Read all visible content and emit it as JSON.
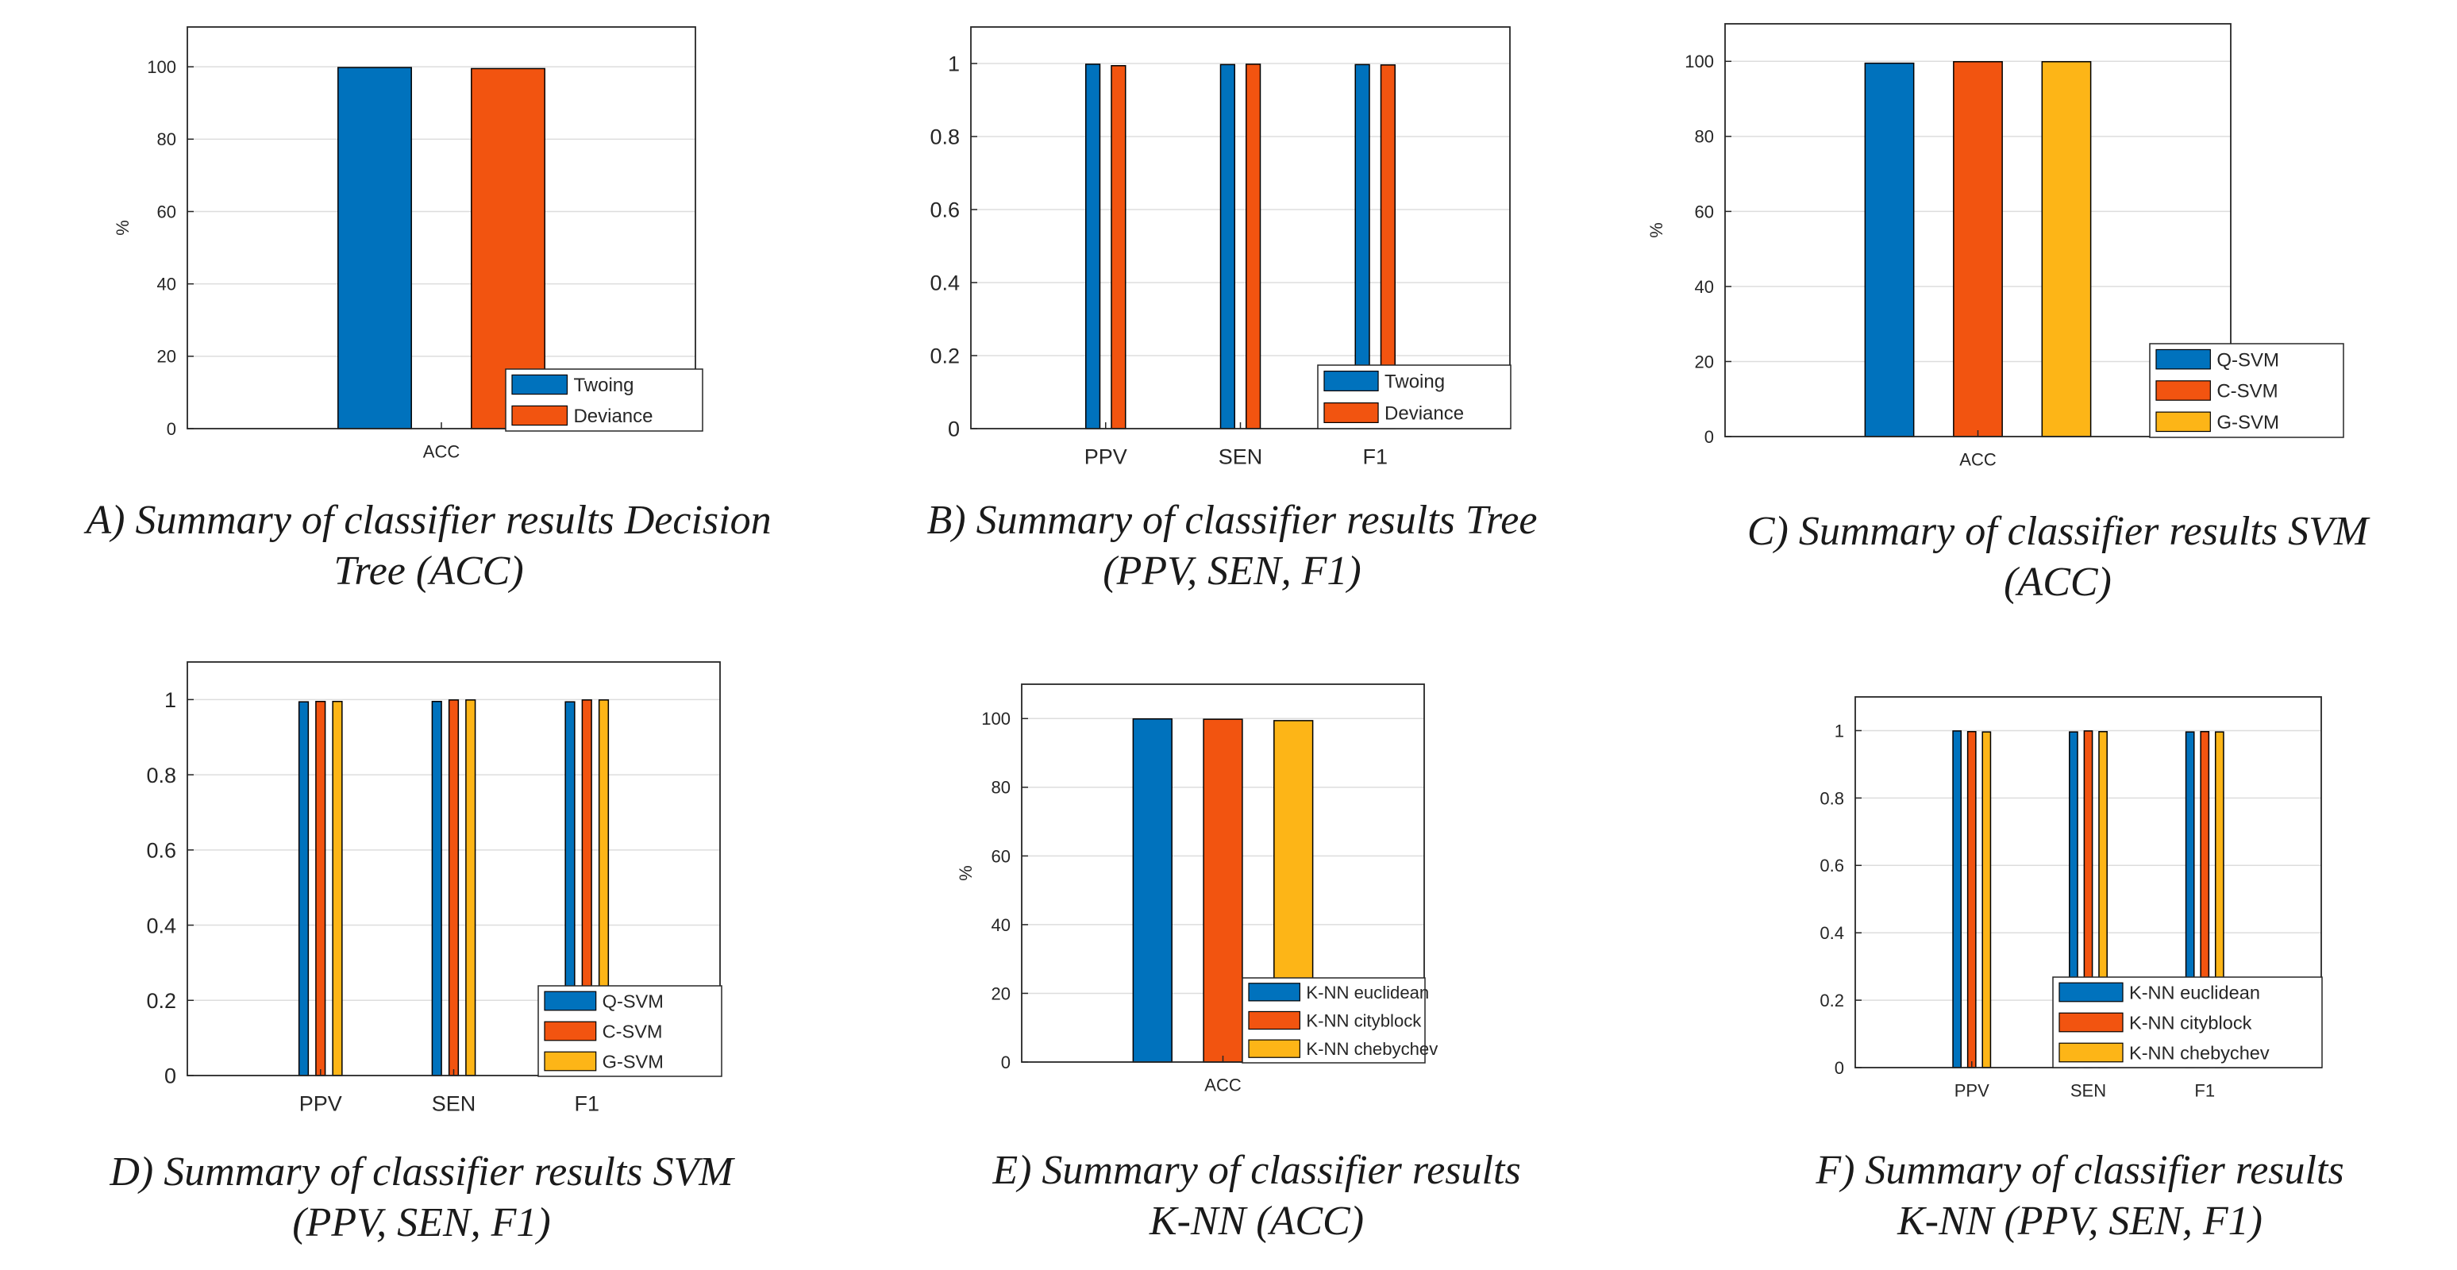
{
  "colors": {
    "blue": "#0072BD",
    "orange": "#F25410",
    "yellow": "#FDB517",
    "grid": "#DDDDDD",
    "axis": "#262626"
  },
  "panels": [
    {
      "caption_lines": [
        "A) Summary of classifier results Decision",
        "Tree (ACC)"
      ],
      "chart_data": {
        "type": "bar",
        "categories": [
          "ACC"
        ],
        "series": [
          {
            "name": "Twoing",
            "color": "blue",
            "values": [
              99.8
            ]
          },
          {
            "name": "Deviance",
            "color": "orange",
            "values": [
              99.5
            ]
          }
        ],
        "xlabel": "",
        "ylabel": "%",
        "ylim": [
          0,
          100
        ],
        "ymax_axis": 111,
        "yticks": [
          "0",
          "20",
          "40",
          "60",
          "80",
          "100"
        ],
        "grid": true,
        "legend": "bottom-right"
      }
    },
    {
      "caption_lines": [
        "B) Summary of classifier results Tree",
        "(PPV, SEN, F1)"
      ],
      "chart_data": {
        "type": "bar",
        "categories": [
          "PPV",
          "SEN",
          "F1"
        ],
        "series": [
          {
            "name": "Twoing",
            "color": "blue",
            "values": [
              0.998,
              0.997,
              0.997
            ]
          },
          {
            "name": "Deviance",
            "color": "orange",
            "values": [
              0.994,
              0.998,
              0.996
            ]
          }
        ],
        "xlabel": "",
        "ylabel": "",
        "ylim": [
          0,
          1
        ],
        "ymax_axis": 1.1,
        "yticks": [
          "0",
          "0.2",
          "0.4",
          "0.6",
          "0.8",
          "1"
        ],
        "grid": true,
        "legend": "bottom-right"
      }
    },
    {
      "caption_lines": [
        "C) Summary of classifier results SVM",
        "(ACC)"
      ],
      "chart_data": {
        "type": "bar",
        "categories": [
          "ACC"
        ],
        "series": [
          {
            "name": "Q-SVM",
            "color": "blue",
            "values": [
              99.5
            ]
          },
          {
            "name": "C-SVM",
            "color": "orange",
            "values": [
              99.9
            ]
          },
          {
            "name": "G-SVM",
            "color": "yellow",
            "values": [
              99.9
            ]
          }
        ],
        "xlabel": "",
        "ylabel": "%",
        "ylim": [
          0,
          100
        ],
        "ymax_axis": 110,
        "yticks": [
          "0",
          "20",
          "40",
          "60",
          "80",
          "100"
        ],
        "grid": true,
        "legend": "bottom-right"
      }
    },
    {
      "caption_lines": [
        "D) Summary of classifier results SVM",
        "(PPV, SEN, F1)"
      ],
      "chart_data": {
        "type": "bar",
        "categories": [
          "PPV",
          "SEN",
          "F1"
        ],
        "series": [
          {
            "name": "Q-SVM",
            "color": "blue",
            "values": [
              0.994,
              0.995,
              0.994
            ]
          },
          {
            "name": "C-SVM",
            "color": "orange",
            "values": [
              0.995,
              0.999,
              0.999
            ]
          },
          {
            "name": "G-SVM",
            "color": "yellow",
            "values": [
              0.995,
              0.999,
              0.999
            ]
          }
        ],
        "xlabel": "",
        "ylabel": "",
        "ylim": [
          0,
          1
        ],
        "ymax_axis": 1.1,
        "yticks": [
          "0",
          "0.2",
          "0.4",
          "0.6",
          "0.8",
          "1"
        ],
        "grid": true,
        "legend": "bottom-right"
      }
    },
    {
      "caption_lines": [
        "E) Summary of classifier results",
        "K-NN (ACC)"
      ],
      "chart_data": {
        "type": "bar",
        "categories": [
          "ACC"
        ],
        "series": [
          {
            "name": "K-NN euclidean",
            "color": "blue",
            "values": [
              99.9
            ]
          },
          {
            "name": "K-NN cityblock",
            "color": "orange",
            "values": [
              99.8
            ]
          },
          {
            "name": "K-NN chebychev",
            "color": "yellow",
            "values": [
              99.4
            ]
          }
        ],
        "xlabel": "",
        "ylabel": "%",
        "ylim": [
          0,
          100
        ],
        "ymax_axis": 110,
        "yticks": [
          "0",
          "20",
          "40",
          "60",
          "80",
          "100"
        ],
        "grid": true,
        "legend": "bottom-right"
      }
    },
    {
      "caption_lines": [
        "F) Summary of classifier results",
        "K-NN (PPV, SEN, F1)"
      ],
      "chart_data": {
        "type": "bar",
        "categories": [
          "PPV",
          "SEN",
          "F1"
        ],
        "series": [
          {
            "name": "K-NN euclidean",
            "color": "blue",
            "values": [
              0.999,
              0.996,
              0.996
            ]
          },
          {
            "name": "K-NN cityblock",
            "color": "orange",
            "values": [
              0.997,
              0.999,
              0.997
            ]
          },
          {
            "name": "K-NN chebychev",
            "color": "yellow",
            "values": [
              0.996,
              0.997,
              0.996
            ]
          }
        ],
        "xlabel": "",
        "ylabel": "",
        "ylim": [
          0,
          1
        ],
        "ymax_axis": 1.1,
        "yticks": [
          "0",
          "0.2",
          "0.4",
          "0.6",
          "0.8",
          "1"
        ],
        "grid": true,
        "legend": "bottom-right"
      }
    }
  ]
}
